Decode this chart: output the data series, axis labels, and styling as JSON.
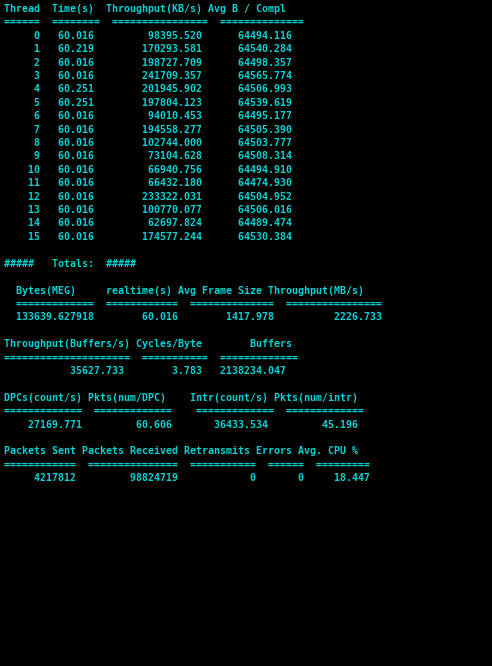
{
  "bg_color": "#000000",
  "text_color": "#00d4d4",
  "font_size": 7.15,
  "figwidth": 4.92,
  "figheight": 6.66,
  "dpi": 100,
  "lines": [
    "Thread  Time(s)  Throughput(KB/s) Avg B / Compl",
    "======  ========  ================  ==============",
    "     0   60.016         98395.520      64494.116",
    "     1   60.219        170293.581      64540.284",
    "     2   60.016        198727.709      64498.357",
    "     3   60.016        241709.357      64565.774",
    "     4   60.251        201945.902      64506.993",
    "     5   60.251        197804.123      64539.619",
    "     6   60.016         94010.453      64495.177",
    "     7   60.016        194558.277      64505.390",
    "     8   60.016        102744.000      64503.777",
    "     9   60.016         73104.628      64508.314",
    "    10   60.016         66940.756      64494.910",
    "    11   60.016         66432.180      64474.930",
    "    12   60.016        233322.031      64504.952",
    "    13   60.016        100770.077      64506.016",
    "    14   60.016         62697.824      64489.474",
    "    15   60.016        174577.244      64530.384",
    "",
    "#####   Totals:  #####",
    "",
    "  Bytes(MEG)     realtime(s) Avg Frame Size Throughput(MB/s)",
    "  =============  ============  ==============  ================",
    "  133639.627918        60.016        1417.978          2226.733",
    "",
    "Throughput(Buffers/s) Cycles/Byte        Buffers",
    "=====================  ===========  =============",
    "           35627.733        3.783   2138234.047",
    "",
    "DPCs(count/s) Pkts(num/DPC)    Intr(count/s) Pkts(num/intr)",
    "=============  =============    =============  =============",
    "    27169.771         60.606       36433.534         45.196",
    "",
    "Packets Sent Packets Received Retransmits Errors Avg. CPU %",
    "============  ===============  ===========  ======  =========",
    "     4217812         98824719            0       0     18.447"
  ]
}
